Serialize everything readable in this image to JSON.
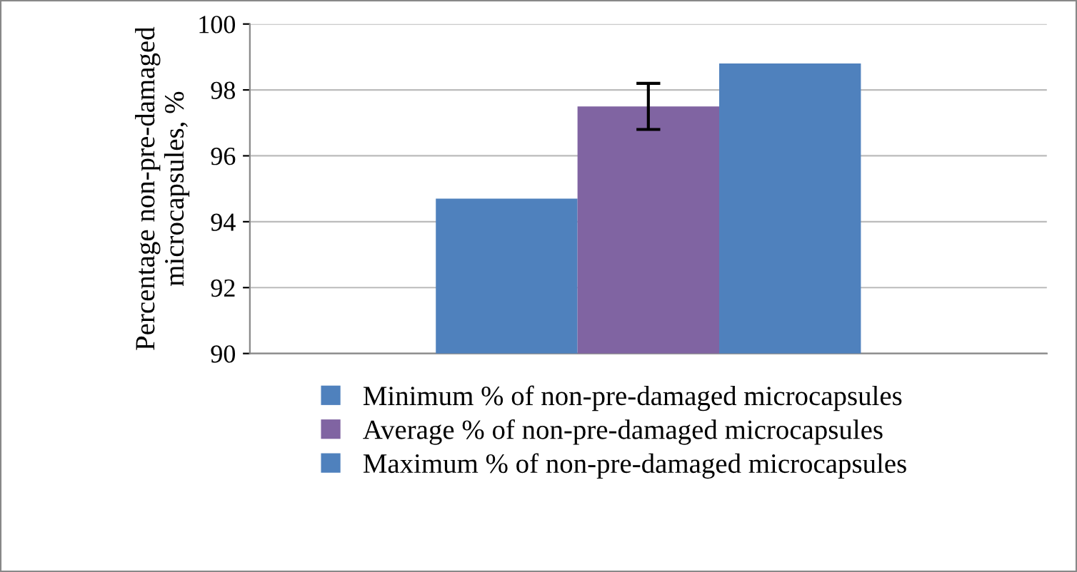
{
  "chart_data": {
    "type": "bar",
    "ylabel": "Percentage non-pre-damaged microcapsules, %",
    "categories": [
      null
    ],
    "series": [
      {
        "name": "Minimum % of non-pre-damaged microcapsules",
        "color": "#4f81bd",
        "values": [
          94.7
        ]
      },
      {
        "name": "Average % of non-pre-damaged microcapsules",
        "color": "#8064a2",
        "values": [
          97.5
        ],
        "errors": [
          [
            96.8,
            98.2
          ]
        ]
      },
      {
        "name": "Maximum % of non-pre-damaged microcapsules",
        "color": "#4f81bd",
        "values": [
          98.8
        ]
      }
    ],
    "ylim": [
      90,
      100
    ],
    "yticks": [
      90,
      92,
      94,
      96,
      98,
      100
    ],
    "grid": "y",
    "legend": "bottom"
  }
}
